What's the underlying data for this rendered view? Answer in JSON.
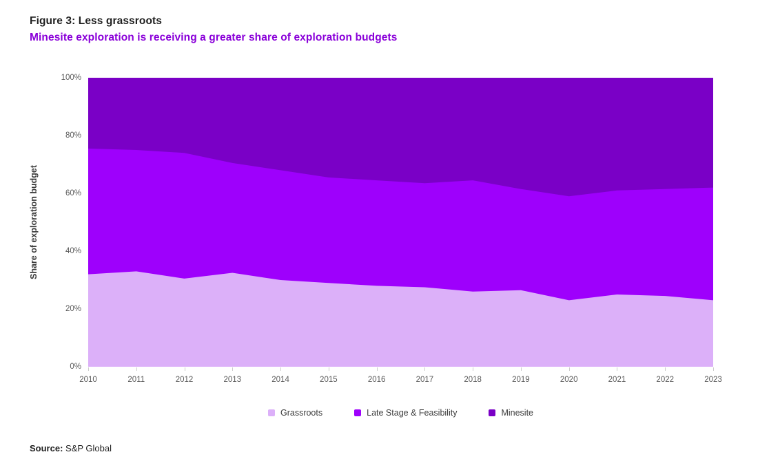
{
  "page": {
    "title": "Figure 3: Less grassroots",
    "subtitle": "Minesite exploration is receiving a greater share of exploration budgets",
    "subtitle_color": "#8a00d9",
    "source_label": "Source:",
    "source_text": " S&P Global"
  },
  "chart_data": {
    "type": "area",
    "stacked": true,
    "title": "Figure 3: Less grassroots",
    "subtitle": "Minesite exploration is receiving a greater share of exploration budgets",
    "xlabel": "",
    "ylabel": "Share of exploration budget",
    "ylim": [
      0,
      100
    ],
    "yticks": [
      "0%",
      "20%",
      "40%",
      "60%",
      "80%",
      "100%"
    ],
    "grid": false,
    "legend_position": "bottom",
    "x": [
      2010,
      2011,
      2012,
      2013,
      2014,
      2015,
      2016,
      2017,
      2018,
      2019,
      2020,
      2021,
      2022,
      2023
    ],
    "series": [
      {
        "name": "Grassroots",
        "color": "#dcb0f9",
        "values": [
          32,
          33,
          30.5,
          32.5,
          30,
          29,
          28,
          27.5,
          26,
          26.5,
          23,
          25,
          24.5,
          23
        ]
      },
      {
        "name": "Late Stage & Feasibility",
        "color": "#9e00fc",
        "values": [
          43.5,
          42,
          43.5,
          38,
          38,
          36.5,
          36.5,
          36,
          38.5,
          35,
          36,
          36,
          37,
          39
        ]
      },
      {
        "name": "Minesite",
        "color": "#7a00c6",
        "values": [
          24.5,
          25,
          26,
          29.5,
          32,
          34.5,
          35.5,
          36.5,
          35.5,
          38.5,
          41,
          39,
          38.5,
          38
        ]
      }
    ]
  }
}
